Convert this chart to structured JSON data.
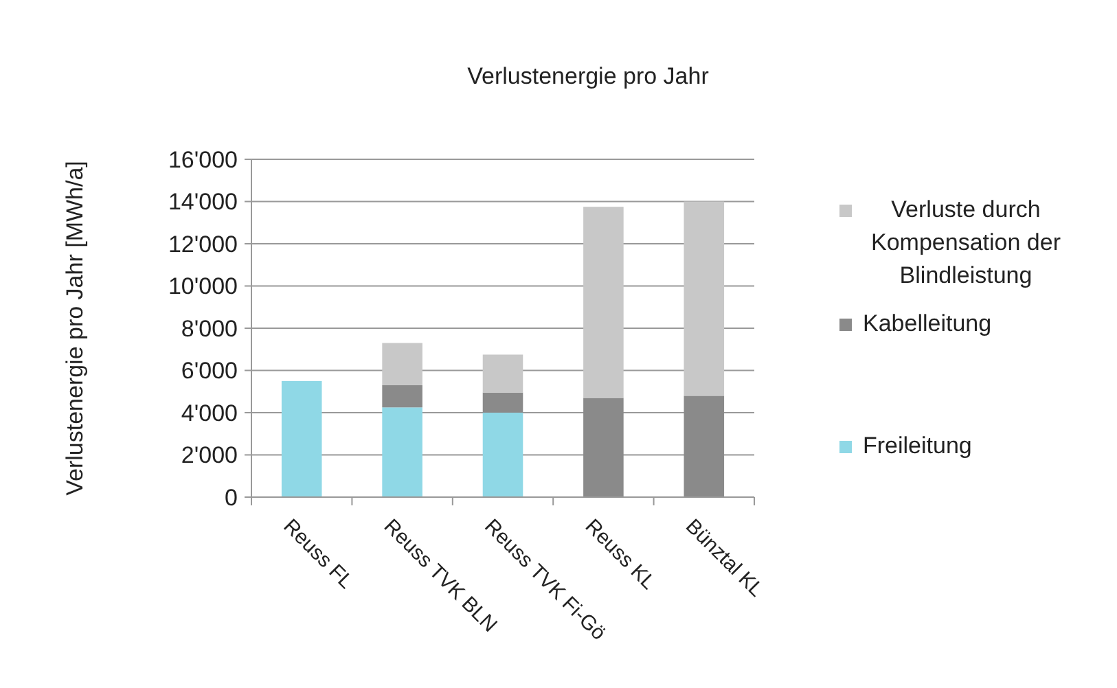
{
  "chart_data": {
    "type": "bar",
    "title": "Verlustenergie pro Jahr",
    "ylabel": "Verlustenergie pro Jahr [MWh/a]",
    "categories": [
      "Reuss FL",
      "Reuss TVK BLN",
      "Reuss TVK Fi-Gö",
      "Reuss KL",
      "Bünztal KL"
    ],
    "stacked": true,
    "series": [
      {
        "name": "Freileitung",
        "color": "#8fd8e6",
        "values": [
          5500,
          4250,
          4000,
          0,
          0
        ]
      },
      {
        "name": "Kabelleitung",
        "color": "#8a8a8a",
        "values": [
          0,
          1050,
          950,
          4700,
          4800
        ]
      },
      {
        "name": "Verluste durch Kompensation der Blindleistung",
        "color": "#c8c8c8",
        "values": [
          0,
          2000,
          1800,
          9050,
          9200
        ]
      }
    ],
    "ylim": [
      0,
      16000
    ],
    "yticks": [
      {
        "value": 0,
        "label": "0"
      },
      {
        "value": 2000,
        "label": "2'000"
      },
      {
        "value": 4000,
        "label": "4'000"
      },
      {
        "value": 6000,
        "label": "6'000"
      },
      {
        "value": 8000,
        "label": "8'000"
      },
      {
        "value": 10000,
        "label": "10'000"
      },
      {
        "value": 12000,
        "label": "12'000"
      },
      {
        "value": 14000,
        "label": "14'000"
      },
      {
        "value": 16000,
        "label": "16'000"
      }
    ],
    "grid": "y",
    "legend": "right"
  }
}
